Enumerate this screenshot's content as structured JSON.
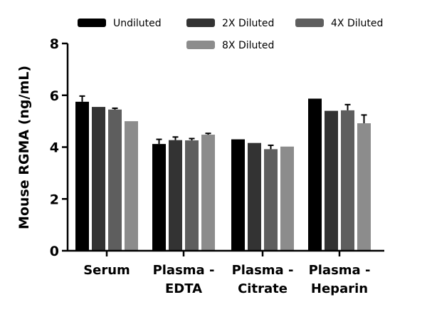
{
  "chart_data": {
    "type": "bar",
    "title": "",
    "xlabel": "",
    "ylabel": "Mouse RGMA (ng/mL)",
    "ylim": [
      0,
      8
    ],
    "yticks": [
      0,
      2,
      4,
      6,
      8
    ],
    "grid": false,
    "legend_position": "top",
    "categories": [
      "Serum",
      "Plasma - EDTA",
      "Plasma - Citrate",
      "Plasma - Heparin"
    ],
    "category_lines": [
      [
        "Serum"
      ],
      [
        "Plasma -",
        "EDTA"
      ],
      [
        "Plasma -",
        "Citrate"
      ],
      [
        "Plasma -",
        "Heparin"
      ]
    ],
    "series": [
      {
        "name": "Undiluted",
        "color": "#000000",
        "values": [
          5.75,
          4.12,
          4.3,
          5.87
        ],
        "errors": [
          0.22,
          0.18,
          0.0,
          0.0
        ]
      },
      {
        "name": "2X Diluted",
        "color": "#333333",
        "values": [
          5.55,
          4.27,
          4.16,
          5.4
        ],
        "errors": [
          0.0,
          0.12,
          0.0,
          0.0
        ]
      },
      {
        "name": "4X Diluted",
        "color": "#5e5e5e",
        "values": [
          5.45,
          4.26,
          3.92,
          5.42
        ],
        "errors": [
          0.05,
          0.07,
          0.15,
          0.22
        ]
      },
      {
        "name": "8X Diluted",
        "color": "#8c8c8c",
        "values": [
          5.0,
          4.48,
          4.02,
          4.92
        ],
        "errors": [
          0.0,
          0.05,
          0.0,
          0.32
        ]
      }
    ]
  }
}
